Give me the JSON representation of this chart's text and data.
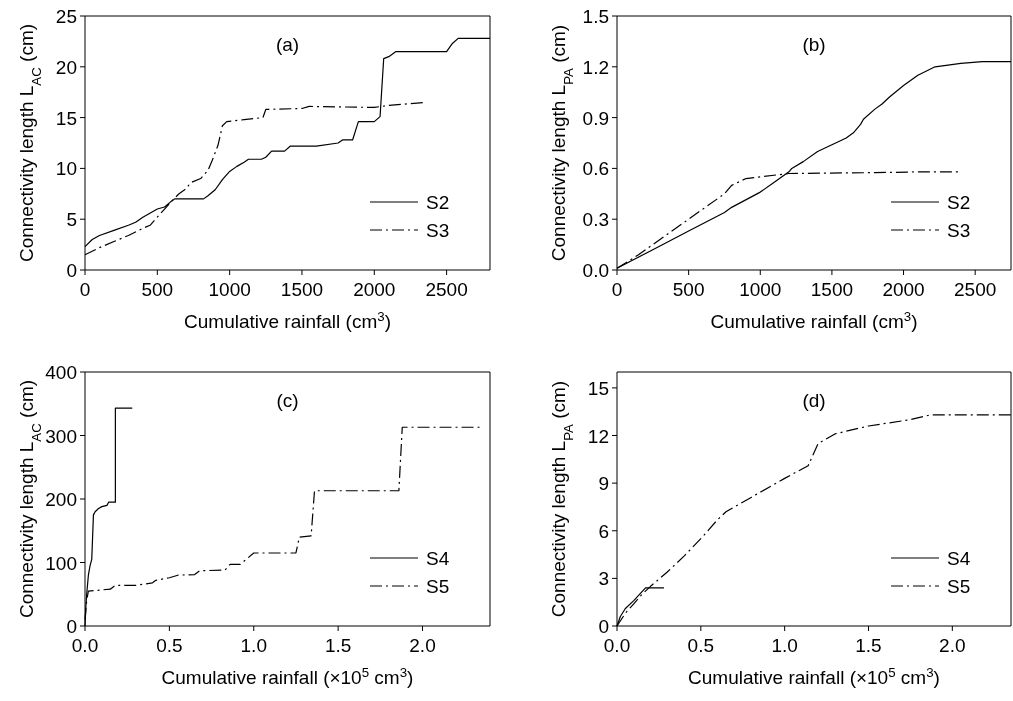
{
  "chart_data": [
    {
      "type": "line",
      "title": "(a)",
      "xlabel": "Cumulative rainfall (cm$^{3}$)",
      "ylabel": "Connectivity length L$_{AC}$ (cm)",
      "xlim": [
        0,
        2800
      ],
      "xticks": [
        0,
        500,
        1000,
        1500,
        2000,
        2500
      ],
      "ylim": [
        0,
        25
      ],
      "yticks": [
        0,
        5,
        10,
        15,
        20,
        25
      ],
      "legend": "bottom right",
      "grid": false,
      "marker": "none",
      "series": [
        {
          "name": "S2",
          "color": "#000000",
          "line_style": "solid",
          "x": [
            0,
            50,
            100,
            200,
            300,
            350,
            400,
            500,
            550,
            600,
            620,
            820,
            850,
            900,
            950,
            1000,
            1050,
            1100,
            1130,
            1220,
            1250,
            1290,
            1380,
            1420,
            1600,
            1750,
            1780,
            1850,
            1890,
            2000,
            2040,
            2065,
            2100,
            2150,
            2500,
            2540,
            2580,
            2800
          ],
          "values": [
            2.3,
            3.0,
            3.4,
            3.9,
            4.4,
            4.7,
            5.2,
            6.0,
            6.2,
            6.8,
            7.0,
            7.0,
            7.3,
            7.9,
            8.9,
            9.7,
            10.2,
            10.6,
            10.9,
            10.9,
            11.1,
            11.7,
            11.7,
            12.2,
            12.2,
            12.5,
            12.8,
            12.8,
            14.6,
            14.6,
            15.1,
            20.8,
            21.0,
            21.5,
            21.5,
            22.3,
            22.8,
            22.8
          ]
        },
        {
          "name": "S3",
          "color": "#000000",
          "line_style": "dashdot",
          "x": [
            0,
            100,
            200,
            300,
            400,
            450,
            500,
            550,
            600,
            650,
            700,
            730,
            800,
            850,
            880,
            920,
            950,
            980,
            1100,
            1230,
            1250,
            1500,
            1550,
            2000,
            2100,
            2350
          ],
          "values": [
            1.5,
            2.2,
            2.8,
            3.4,
            4.1,
            4.4,
            5.2,
            6.0,
            6.8,
            7.5,
            8.0,
            8.6,
            9.0,
            9.8,
            10.8,
            12.3,
            14.2,
            14.6,
            14.8,
            15.0,
            15.8,
            15.9,
            16.1,
            16.0,
            16.2,
            16.5
          ]
        }
      ]
    },
    {
      "type": "line",
      "title": "(b)",
      "xlabel": "Cumulative rainfall (cm$^{3}$)",
      "ylabel": "Connectivity length  L$_{PA}$ (cm)",
      "xlim": [
        0,
        2750
      ],
      "xticks": [
        0,
        500,
        1000,
        1500,
        2000,
        2500
      ],
      "ylim": [
        0,
        1.5
      ],
      "yticks": [
        {
          "value": 0,
          "label": "0.0"
        },
        {
          "value": 0.3,
          "label": "0.3"
        },
        {
          "value": 0.6,
          "label": "0.6"
        },
        {
          "value": 0.9,
          "label": "0.9"
        },
        {
          "value": 1.2,
          "label": "1.2"
        },
        {
          "value": 1.5,
          "label": "1.5"
        }
      ],
      "legend": "bottom right",
      "grid": false,
      "marker": "none",
      "series": [
        {
          "name": "S2",
          "color": "#000000",
          "line_style": "solid",
          "x": [
            0,
            250,
            500,
            750,
            800,
            1000,
            1100,
            1200,
            1220,
            1300,
            1400,
            1500,
            1600,
            1650,
            1700,
            1720,
            1800,
            1850,
            1900,
            2000,
            2100,
            2220,
            2400,
            2550,
            2750
          ],
          "values": [
            0.01,
            0.12,
            0.23,
            0.34,
            0.37,
            0.46,
            0.52,
            0.58,
            0.6,
            0.64,
            0.7,
            0.74,
            0.78,
            0.81,
            0.86,
            0.89,
            0.95,
            0.98,
            1.02,
            1.09,
            1.15,
            1.2,
            1.22,
            1.23,
            1.23
          ]
        },
        {
          "name": "S3",
          "color": "#000000",
          "line_style": "dashdot",
          "x": [
            0,
            150,
            300,
            500,
            750,
            800,
            900,
            1000,
            1200,
            1800,
            2150,
            2380
          ],
          "values": [
            0.01,
            0.09,
            0.18,
            0.3,
            0.45,
            0.5,
            0.54,
            0.55,
            0.57,
            0.575,
            0.58,
            0.58
          ]
        }
      ]
    },
    {
      "type": "line",
      "title": "(c)",
      "xlabel": "Cumulative rainfall (×10$^{5}$ cm$^{3}$)",
      "ylabel": "Connectivity length L$_{AC}$ (cm)",
      "xlim": [
        0,
        2.4
      ],
      "xticks": [
        {
          "value": 0,
          "label": "0.0"
        },
        0.5,
        {
          "value": 1,
          "label": "1.0"
        },
        1.5,
        {
          "value": 2,
          "label": "2.0"
        }
      ],
      "ylim": [
        0,
        400
      ],
      "yticks": [
        0,
        100,
        200,
        300,
        400
      ],
      "legend": "bottom right",
      "grid": false,
      "marker": "none",
      "series": [
        {
          "name": "S4",
          "color": "#000000",
          "line_style": "solid",
          "x": [
            0,
            0.005,
            0.01,
            0.02,
            0.03,
            0.04,
            0.05,
            0.06,
            0.08,
            0.1,
            0.13,
            0.14,
            0.18,
            0.18,
            0.28
          ],
          "values": [
            0,
            30,
            50,
            80,
            95,
            105,
            175,
            180,
            185,
            188,
            190,
            195,
            195,
            343,
            343
          ]
        },
        {
          "name": "S5",
          "color": "#000000",
          "line_style": "dashdot",
          "x": [
            0,
            0.01,
            0.02,
            0.15,
            0.18,
            0.3,
            0.4,
            0.42,
            0.5,
            0.55,
            0.65,
            0.68,
            0.83,
            0.86,
            0.92,
            1.0,
            1.25,
            1.27,
            1.34,
            1.36,
            1.86,
            1.88,
            2.35
          ],
          "values": [
            10,
            40,
            55,
            58,
            64,
            64,
            68,
            72,
            76,
            80,
            81,
            87,
            88,
            97,
            97,
            115,
            115,
            140,
            142,
            213,
            213,
            313,
            313
          ]
        }
      ]
    },
    {
      "type": "line",
      "title": "(d)",
      "xlabel": "Cumulative rainfall (×10$^{5}$ cm$^{3}$)",
      "ylabel": "Connectivity length L$_{PA}$ (cm)",
      "xlim": [
        0,
        2.35
      ],
      "xticks": [
        {
          "value": 0,
          "label": "0.0"
        },
        0.5,
        {
          "value": 1,
          "label": "1.0"
        },
        1.5,
        {
          "value": 2,
          "label": "2.0"
        }
      ],
      "ylim": [
        0,
        16
      ],
      "yticks": [
        0,
        3,
        6,
        9,
        12,
        15
      ],
      "legend": "bottom right",
      "grid": false,
      "marker": "none",
      "series": [
        {
          "name": "S4",
          "color": "#000000",
          "line_style": "solid",
          "x": [
            0,
            0.02,
            0.05,
            0.1,
            0.17,
            0.28
          ],
          "values": [
            0,
            0.6,
            1.1,
            1.6,
            2.4,
            2.4
          ]
        },
        {
          "name": "S5",
          "color": "#000000",
          "line_style": "dashdot",
          "x": [
            0,
            0.05,
            0.1,
            0.15,
            0.2,
            0.3,
            0.4,
            0.5,
            0.6,
            0.65,
            0.8,
            1.0,
            1.14,
            1.2,
            1.3,
            1.5,
            1.75,
            1.87,
            2.35
          ],
          "values": [
            0,
            0.8,
            1.4,
            2.0,
            2.5,
            3.4,
            4.4,
            5.5,
            6.7,
            7.2,
            8.1,
            9.3,
            10.1,
            11.5,
            12.1,
            12.6,
            13.0,
            13.3,
            13.3
          ]
        }
      ]
    }
  ]
}
